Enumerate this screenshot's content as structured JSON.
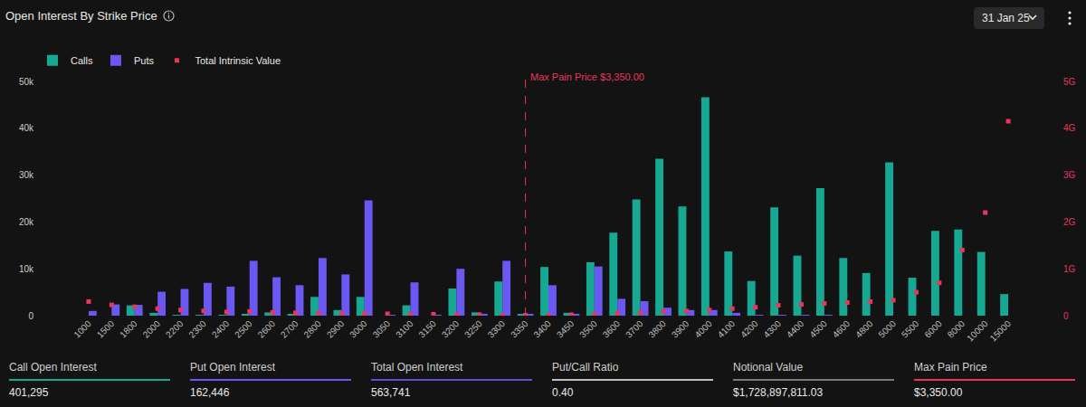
{
  "header": {
    "title": "Open Interest By Strike Price",
    "date": "31 Jan 25"
  },
  "chart_data": {
    "type": "bar",
    "categories": [
      "1000",
      "1500",
      "1800",
      "2000",
      "2200",
      "2300",
      "2400",
      "2500",
      "2600",
      "2700",
      "2800",
      "2900",
      "3000",
      "3050",
      "3100",
      "3150",
      "3200",
      "3250",
      "3300",
      "3350",
      "3400",
      "3450",
      "3500",
      "3600",
      "3700",
      "3800",
      "3900",
      "4000",
      "4100",
      "4200",
      "4300",
      "4400",
      "4500",
      "4600",
      "4800",
      "5000",
      "5500",
      "6000",
      "8000",
      "10000",
      "15000"
    ],
    "series": [
      {
        "name": "Calls",
        "color": "#17a894",
        "values": [
          0,
          0,
          2200,
          600,
          100,
          100,
          100,
          400,
          700,
          300,
          4000,
          1200,
          4000,
          0,
          2200,
          0,
          5800,
          700,
          7300,
          200,
          10400,
          600,
          11400,
          17700,
          24800,
          33500,
          23300,
          46600,
          13700,
          7400,
          23100,
          12800,
          27200,
          12300,
          9100,
          32700,
          8100,
          18100,
          18400,
          13600,
          4600
        ]
      },
      {
        "name": "Puts",
        "color": "#6b57f2",
        "values": [
          1000,
          2400,
          2300,
          5100,
          5700,
          7000,
          6200,
          11700,
          8200,
          6500,
          12300,
          8800,
          24600,
          100,
          7100,
          100,
          10000,
          400,
          11700,
          200,
          6500,
          400,
          10500,
          3600,
          3100,
          1700,
          1200,
          1200,
          600,
          100,
          100,
          100,
          100,
          0,
          0,
          0,
          0,
          0,
          0,
          0,
          0
        ]
      },
      {
        "name": "Total Intrinsic Value",
        "type": "scatter",
        "marker": "square",
        "color": "#e8365d",
        "axis": "y2",
        "values": [
          0.3,
          0.23,
          0.19,
          0.15,
          0.12,
          0.1,
          0.08,
          0.09,
          0.07,
          0.06,
          0.06,
          0.04,
          0.04,
          0.04,
          0.03,
          0.03,
          0.02,
          0.02,
          0.01,
          0.01,
          0.01,
          0.02,
          0.03,
          0.05,
          0.07,
          0.09,
          0.1,
          0.12,
          0.15,
          0.18,
          0.22,
          0.24,
          0.26,
          0.28,
          0.3,
          0.33,
          0.5,
          0.7,
          1.4,
          2.2,
          4.15
        ]
      }
    ],
    "ylim": [
      0,
      50000
    ],
    "yticks": [
      0,
      {
        "value": 10000,
        "label": "10k"
      },
      {
        "value": 20000,
        "label": "20k"
      },
      {
        "value": 30000,
        "label": "30k"
      },
      {
        "value": 40000,
        "label": "40k"
      },
      {
        "value": 50000,
        "label": "50k"
      }
    ],
    "y2lim": [
      0,
      5
    ],
    "y2ticks": [
      0,
      {
        "value": 1,
        "label": "1G"
      },
      {
        "value": 2,
        "label": "2G"
      },
      {
        "value": 3,
        "label": "3G"
      },
      {
        "value": 4,
        "label": "4G"
      },
      {
        "value": 5,
        "label": "5G"
      }
    ],
    "grid": false,
    "legend": "top left",
    "annotations": [
      {
        "category": "3350",
        "text": "Max Pain Price $3,350.00",
        "color": "#e8365d"
      }
    ]
  },
  "stats": [
    {
      "label": "Call Open Interest",
      "value": "401,295",
      "color": "#17a894"
    },
    {
      "label": "Put Open Interest",
      "value": "162,446",
      "color": "#6b57f2"
    },
    {
      "label": "Total Open Interest",
      "value": "563,741",
      "color": "#5b4fd6"
    },
    {
      "label": "Put/Call Ratio",
      "value": "0.40",
      "color": "#bdbdbd"
    },
    {
      "label": "Notional Value",
      "value": "$1,728,897,811.03",
      "color": "#7a7a7a"
    },
    {
      "label": "Max Pain Price",
      "value": "$3,350.00",
      "color": "#e8365d"
    }
  ]
}
